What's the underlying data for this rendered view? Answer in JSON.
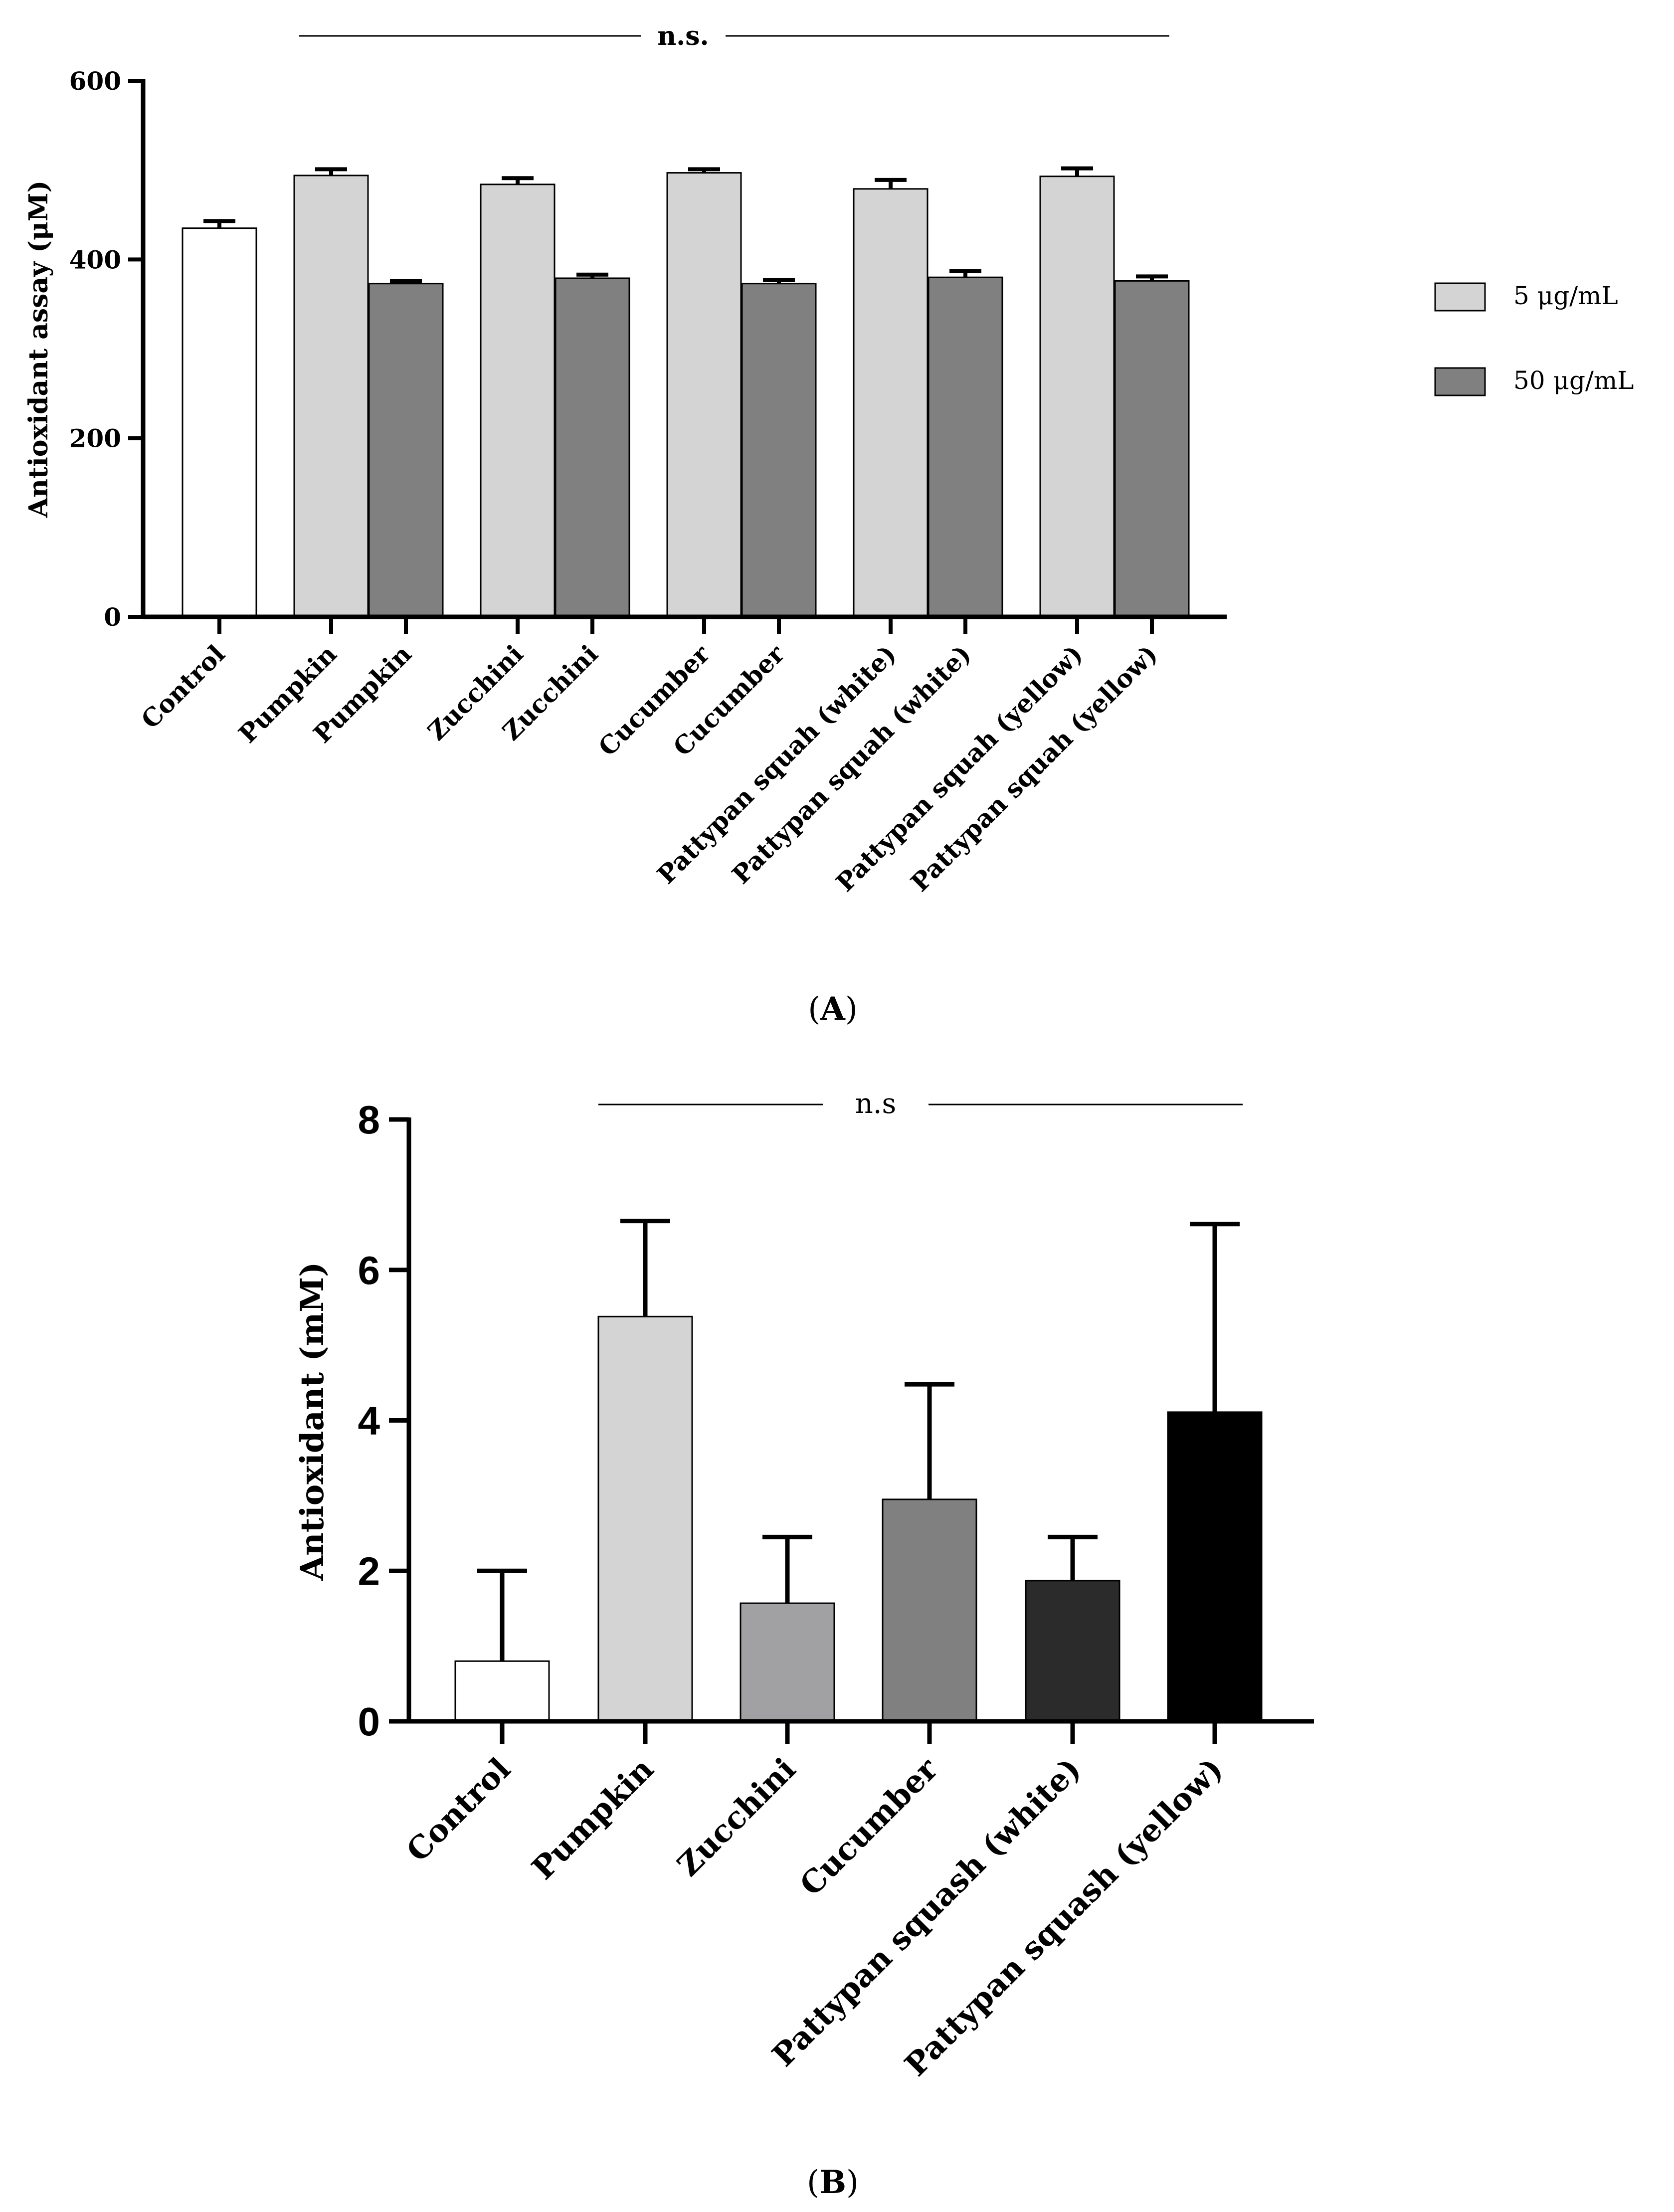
{
  "chart_data": [
    {
      "panel": "A",
      "type": "bar",
      "title": "",
      "xlabel": "",
      "ylabel": "Antioxidant assay (μM)",
      "ylim": [
        0,
        600
      ],
      "yticks": [
        "0",
        "200",
        "400",
        "600"
      ],
      "significance": "n.s.",
      "panel_label": "A",
      "legend": {
        "position": "right",
        "entries": [
          {
            "label": "5 μg/mL",
            "color": "#d4d4d4"
          },
          {
            "label": "50 μg/mL",
            "color": "#808080"
          }
        ]
      },
      "bars": [
        {
          "category": "Control",
          "value": 435,
          "error": 8,
          "series": "control",
          "color": "#ffffff"
        },
        {
          "category": "Pumpkin",
          "value": 494,
          "error": 7,
          "series": "5 μg/mL",
          "color": "#d4d4d4"
        },
        {
          "category": "Pumpkin",
          "value": 373,
          "error": 3,
          "series": "50 μg/mL",
          "color": "#808080"
        },
        {
          "category": "Zucchini",
          "value": 484,
          "error": 7,
          "series": "5 μg/mL",
          "color": "#d4d4d4"
        },
        {
          "category": "Zucchini",
          "value": 379,
          "error": 4,
          "series": "50 μg/mL",
          "color": "#808080"
        },
        {
          "category": "Cucumber",
          "value": 497,
          "error": 4,
          "series": "5 μg/mL",
          "color": "#d4d4d4"
        },
        {
          "category": "Cucumber",
          "value": 373,
          "error": 4,
          "series": "50 μg/mL",
          "color": "#808080"
        },
        {
          "category": "Pattypan squah (white)",
          "value": 479,
          "error": 10,
          "series": "5 μg/mL",
          "color": "#d4d4d4"
        },
        {
          "category": "Pattypan squah (white)",
          "value": 380,
          "error": 7,
          "series": "50 μg/mL",
          "color": "#808080"
        },
        {
          "category": "Pattypan squah (yellow)",
          "value": 493,
          "error": 9,
          "series": "5 μg/mL",
          "color": "#d4d4d4"
        },
        {
          "category": "Pattypan squah (yellow)",
          "value": 376,
          "error": 5,
          "series": "50 μg/mL",
          "color": "#808080"
        }
      ]
    },
    {
      "panel": "B",
      "type": "bar",
      "title": "",
      "xlabel": "",
      "ylabel": "Antioxidant (mM)",
      "ylim": [
        0,
        8
      ],
      "yticks": [
        "0",
        "2",
        "4",
        "6",
        "8"
      ],
      "significance": "n.s",
      "panel_label": "B",
      "bars": [
        {
          "category": "Control",
          "value": 0.8,
          "error": 1.2,
          "color": "#ffffff"
        },
        {
          "category": "Pumpkin",
          "value": 5.38,
          "error": 1.27,
          "color": "#d4d4d4"
        },
        {
          "category": "Zucchini",
          "value": 1.57,
          "error": 0.88,
          "color": "#a1a1a4"
        },
        {
          "category": "Cucumber",
          "value": 2.95,
          "error": 1.53,
          "color": "#808080"
        },
        {
          "category": "Pattypan squash (white)",
          "value": 1.87,
          "error": 0.58,
          "color": "#2b2b2b"
        },
        {
          "category": "Pattypan squash (yellow)",
          "value": 4.11,
          "error": 2.5,
          "color": "#000000"
        }
      ]
    }
  ]
}
